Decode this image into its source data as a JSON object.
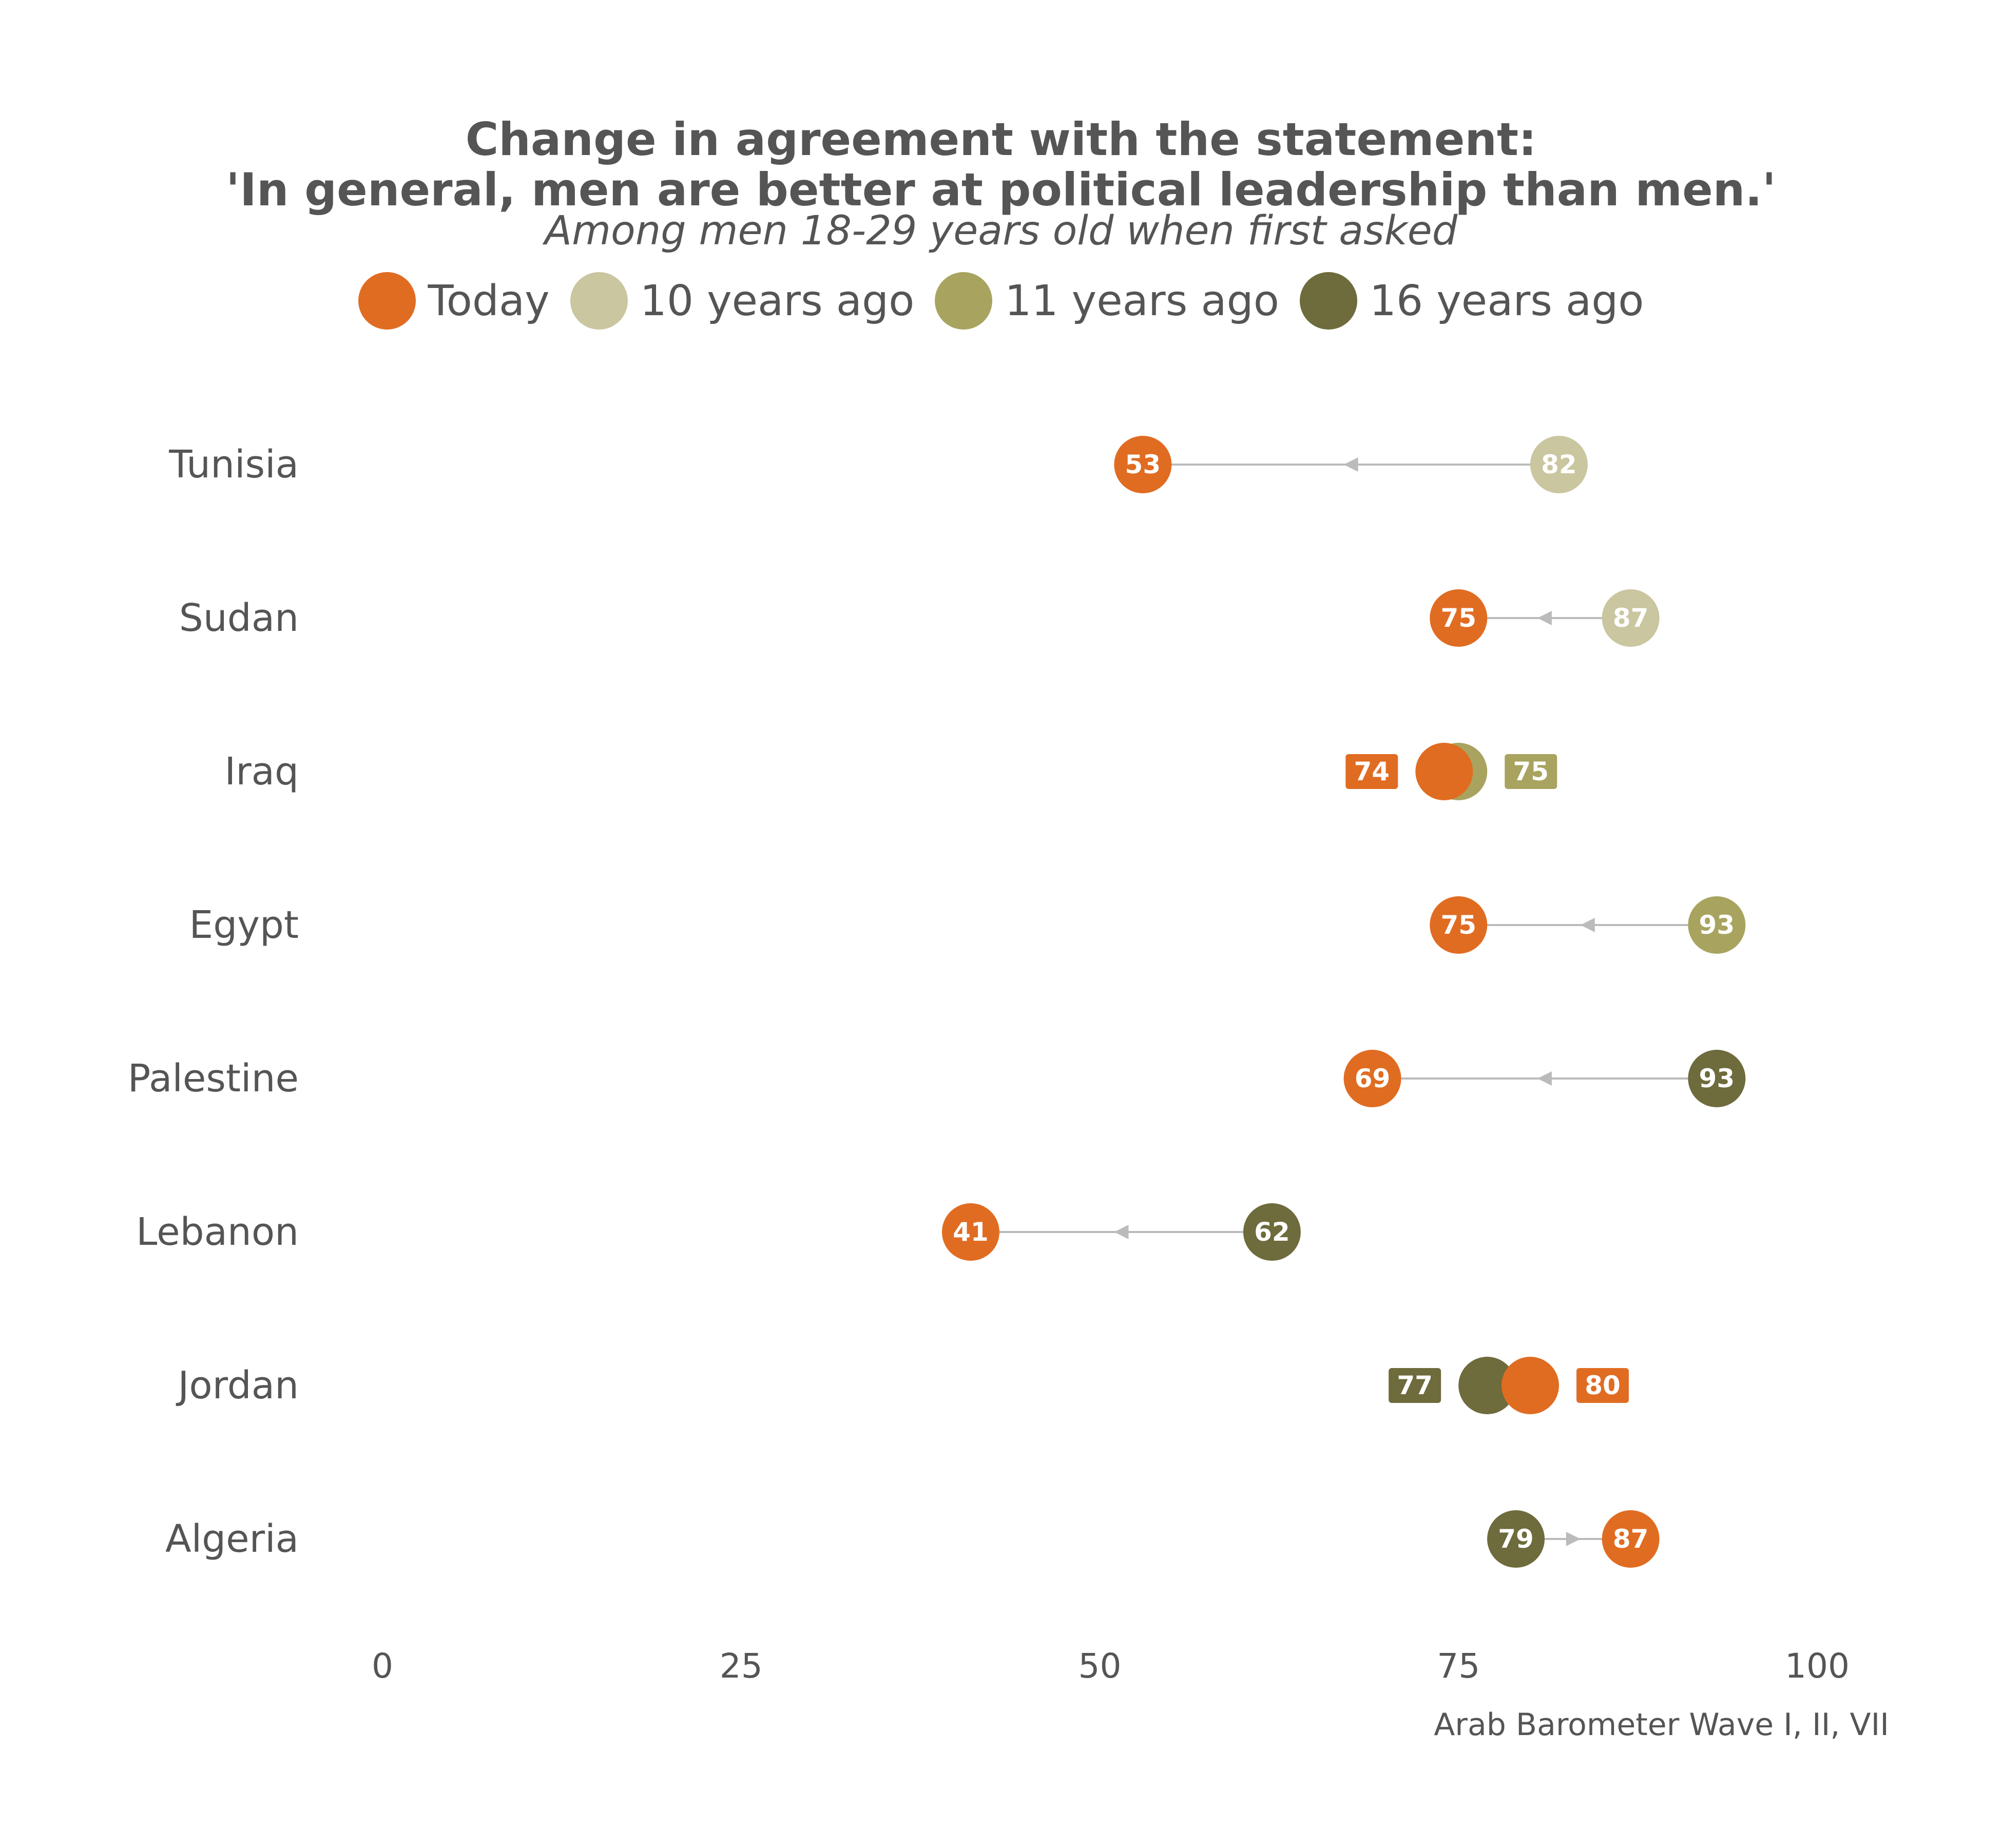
{
  "header": {
    "title_line1": "Change in agreement with the statement:",
    "title_line2": "'In general, men are better at political leadership than men.'",
    "subtitle": "Among men 18-29 years old when first asked"
  },
  "legend": [
    {
      "label": "Today",
      "color": "#E06C22"
    },
    {
      "label": "10 years ago",
      "color": "#C9C6A0"
    },
    {
      "label": "11 years ago",
      "color": "#A8A460"
    },
    {
      "label": "16 years ago",
      "color": "#6E6B3C"
    }
  ],
  "source": "Arab Barometer Wave I, II, VII",
  "chart_data": {
    "type": "dumbbell",
    "xlim": [
      0,
      100
    ],
    "xticks": [
      "0",
      "25",
      "50",
      "75",
      "100"
    ],
    "grid": false,
    "legend_position": "top",
    "colors": {
      "Today": "#E06C22",
      "10 years ago": "#C9C6A0",
      "11 years ago": "#A8A460",
      "16 years ago": "#6E6B3C",
      "connector": "#BBBBBB"
    },
    "rows": [
      {
        "country": "Tunisia",
        "today": 53,
        "past": 82,
        "past_label": "10 years ago"
      },
      {
        "country": "Sudan",
        "today": 75,
        "past": 87,
        "past_label": "10 years ago"
      },
      {
        "country": "Iraq",
        "today": 74,
        "past": 75,
        "past_label": "11 years ago"
      },
      {
        "country": "Egypt",
        "today": 75,
        "past": 93,
        "past_label": "11 years ago"
      },
      {
        "country": "Palestine",
        "today": 69,
        "past": 93,
        "past_label": "16 years ago"
      },
      {
        "country": "Lebanon",
        "today": 41,
        "past": 62,
        "past_label": "16 years ago"
      },
      {
        "country": "Jordan",
        "today": 80,
        "past": 77,
        "past_label": "16 years ago"
      },
      {
        "country": "Algeria",
        "today": 87,
        "past": 79,
        "past_label": "16 years ago"
      }
    ]
  }
}
